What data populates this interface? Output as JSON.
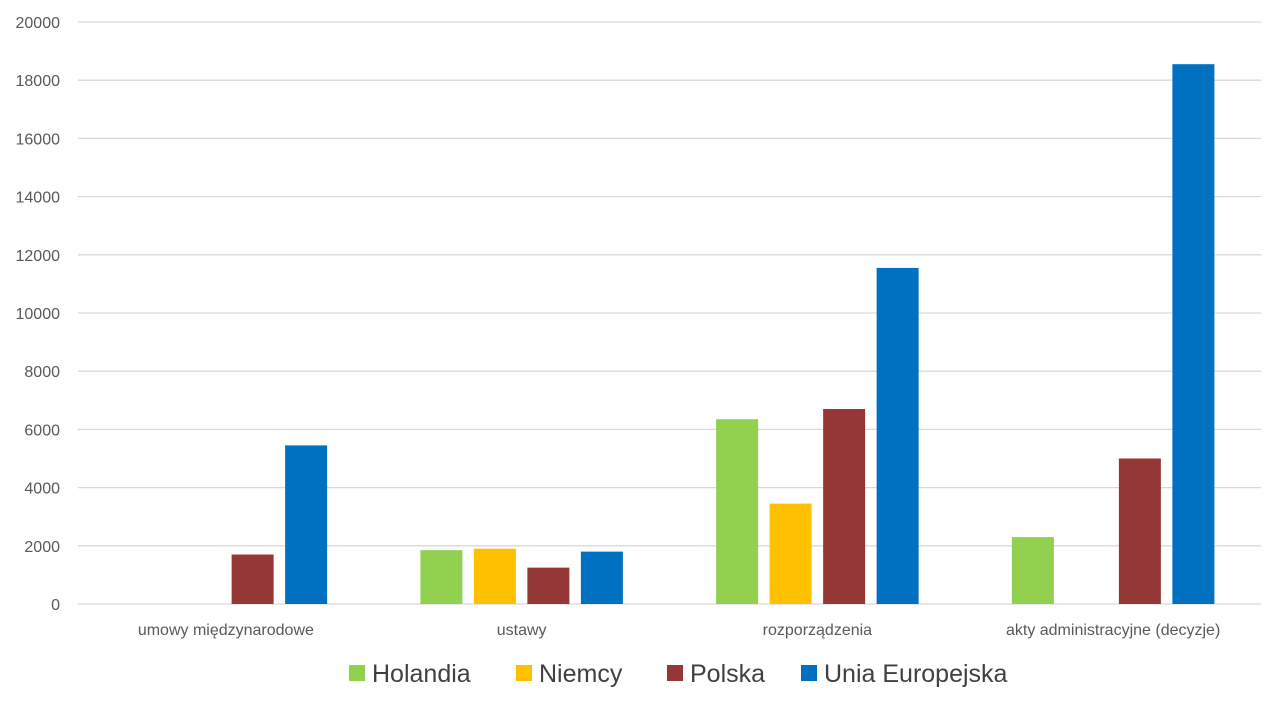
{
  "chart_data": {
    "type": "bar",
    "categories": [
      "umowy międzynarodowe",
      "ustawy",
      "rozporządzenia",
      "akty administracyjne (decyzje)"
    ],
    "series": [
      {
        "name": "Holandia",
        "color": "#92d050",
        "values": [
          0,
          1850,
          6350,
          2300
        ]
      },
      {
        "name": "Niemcy",
        "color": "#ffc000",
        "values": [
          0,
          1900,
          3450,
          0
        ]
      },
      {
        "name": "Polska",
        "color": "#953735",
        "values": [
          1700,
          1250,
          6700,
          5000
        ]
      },
      {
        "name": "Unia Europejska",
        "color": "#0070c0",
        "values": [
          5450,
          1800,
          11550,
          18550
        ]
      }
    ],
    "y_ticks": [
      "0",
      "2000",
      "4000",
      "6000",
      "8000",
      "10000",
      "12000",
      "14000",
      "16000",
      "18000",
      "20000"
    ],
    "ylim": [
      0,
      20000
    ],
    "title": "",
    "xlabel": "",
    "ylabel": "",
    "grid": true,
    "legend_position": "bottom"
  }
}
